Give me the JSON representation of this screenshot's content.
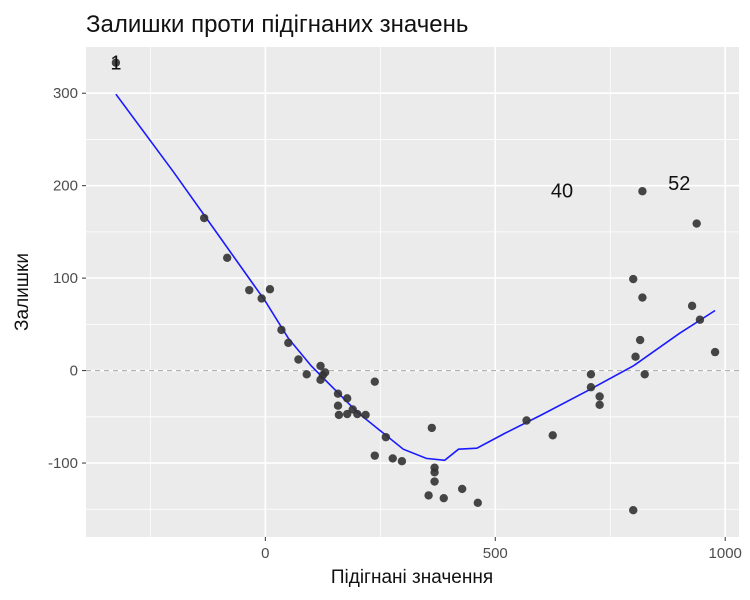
{
  "chart_data": {
    "type": "scatter",
    "title": "Залишки проти підігнаних значень",
    "xlabel": "Підігнані значення",
    "ylabel": "Залишки",
    "xlim": [
      -390,
      1030
    ],
    "ylim": [
      -180,
      350
    ],
    "x_ticks": [
      0,
      500,
      1000
    ],
    "x_tick_labels": [
      "0",
      "500",
      "1000"
    ],
    "y_ticks": [
      -100,
      0,
      100,
      200,
      300
    ],
    "y_tick_labels": [
      "-100",
      "0",
      "100",
      "200",
      "300"
    ],
    "grid": true,
    "reference_line_y": 0,
    "colors": {
      "panel": "#ebebeb",
      "grid": "#ffffff",
      "points": "#333333",
      "smooth": "#1a1aff",
      "reference": "#a6a6a6"
    },
    "points": [
      {
        "x": -325,
        "y": 333
      },
      {
        "x": -133,
        "y": 165
      },
      {
        "x": -83,
        "y": 122
      },
      {
        "x": -35,
        "y": 87
      },
      {
        "x": -8,
        "y": 78
      },
      {
        "x": 10,
        "y": 88
      },
      {
        "x": 35,
        "y": 44
      },
      {
        "x": 50,
        "y": 30
      },
      {
        "x": 72,
        "y": 12
      },
      {
        "x": 90,
        "y": -4
      },
      {
        "x": 120,
        "y": 5
      },
      {
        "x": 120,
        "y": -10
      },
      {
        "x": 125,
        "y": -5
      },
      {
        "x": 130,
        "y": -2
      },
      {
        "x": 158,
        "y": -25
      },
      {
        "x": 158,
        "y": -38
      },
      {
        "x": 160,
        "y": -48
      },
      {
        "x": 178,
        "y": -30
      },
      {
        "x": 178,
        "y": -47
      },
      {
        "x": 190,
        "y": -42
      },
      {
        "x": 200,
        "y": -47
      },
      {
        "x": 218,
        "y": -48
      },
      {
        "x": 238,
        "y": -12
      },
      {
        "x": 238,
        "y": -92
      },
      {
        "x": 262,
        "y": -72
      },
      {
        "x": 277,
        "y": -95
      },
      {
        "x": 297,
        "y": -98
      },
      {
        "x": 355,
        "y": -135
      },
      {
        "x": 362,
        "y": -62
      },
      {
        "x": 368,
        "y": -105
      },
      {
        "x": 368,
        "y": -110
      },
      {
        "x": 368,
        "y": -120
      },
      {
        "x": 388,
        "y": -138
      },
      {
        "x": 428,
        "y": -128
      },
      {
        "x": 462,
        "y": -143
      },
      {
        "x": 568,
        "y": -54
      },
      {
        "x": 625,
        "y": -70
      },
      {
        "x": 708,
        "y": -4
      },
      {
        "x": 708,
        "y": -18
      },
      {
        "x": 727,
        "y": -28
      },
      {
        "x": 727,
        "y": -37
      },
      {
        "x": 800,
        "y": 99
      },
      {
        "x": 800,
        "y": -151
      },
      {
        "x": 805,
        "y": 15
      },
      {
        "x": 815,
        "y": 33
      },
      {
        "x": 820,
        "y": 194
      },
      {
        "x": 820,
        "y": 79
      },
      {
        "x": 825,
        "y": -4
      },
      {
        "x": 928,
        "y": 70
      },
      {
        "x": 938,
        "y": 159
      },
      {
        "x": 945,
        "y": 55
      },
      {
        "x": 978,
        "y": 20
      }
    ],
    "labeled_points": [
      {
        "label": "1",
        "x": -325,
        "y": 333
      },
      {
        "label": "40",
        "x": 645,
        "y": 195
      },
      {
        "label": "52",
        "x": 900,
        "y": 203
      }
    ],
    "smooth_line": [
      {
        "x": -325,
        "y": 299
      },
      {
        "x": -200,
        "y": 215
      },
      {
        "x": -100,
        "y": 145
      },
      {
        "x": 0,
        "y": 75
      },
      {
        "x": 50,
        "y": 35
      },
      {
        "x": 100,
        "y": 5
      },
      {
        "x": 150,
        "y": -20
      },
      {
        "x": 200,
        "y": -45
      },
      {
        "x": 250,
        "y": -65
      },
      {
        "x": 300,
        "y": -85
      },
      {
        "x": 350,
        "y": -95
      },
      {
        "x": 390,
        "y": -97
      },
      {
        "x": 420,
        "y": -85
      },
      {
        "x": 460,
        "y": -84
      },
      {
        "x": 520,
        "y": -68
      },
      {
        "x": 600,
        "y": -48
      },
      {
        "x": 700,
        "y": -22
      },
      {
        "x": 800,
        "y": 5
      },
      {
        "x": 900,
        "y": 40
      },
      {
        "x": 978,
        "y": 65
      }
    ]
  }
}
